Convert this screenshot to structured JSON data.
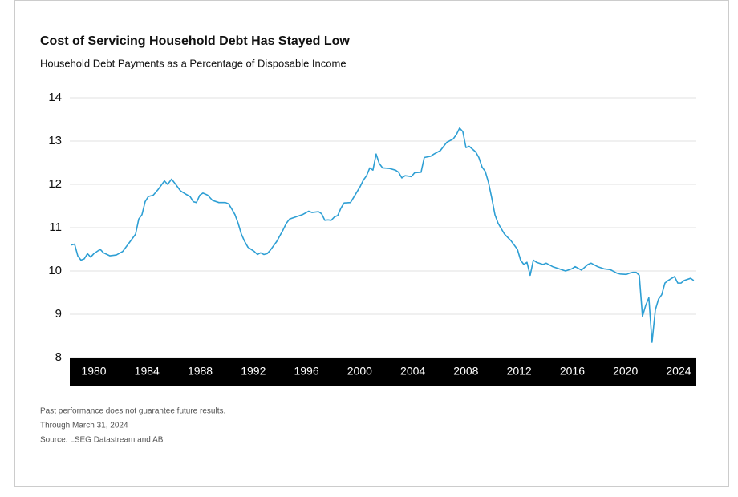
{
  "chart_data": {
    "type": "line",
    "title": "Cost of Servicing Household Debt Has Stayed Low",
    "subtitle": "Household Debt Payments as a Percentage of Disposable Income",
    "notes": [
      "Past performance does not guarantee future results.",
      "Through March 31, 2024",
      "Source: LSEG Datastream and AB"
    ],
    "xlim": [
      1978.19,
      2025.33
    ],
    "xticks": [
      1980,
      1984,
      1988,
      1992,
      1996,
      2000,
      2004,
      2008,
      2012,
      2016,
      2020,
      2024
    ],
    "ylim": [
      8,
      14
    ],
    "yticks": [
      8,
      9,
      10,
      11,
      12,
      13,
      14
    ],
    "grid": true,
    "series": [
      {
        "color": "#2e9fd4",
        "x": [
          1978.31,
          1978.55,
          1978.79,
          1979.03,
          1979.28,
          1979.52,
          1979.76,
          1980,
          1980.48,
          1980.72,
          1981.21,
          1981.69,
          1982.17,
          1982.66,
          1983.14,
          1983.38,
          1983.62,
          1983.86,
          1984.1,
          1984.47,
          1984.83,
          1985.31,
          1985.55,
          1985.85,
          1986.16,
          1986.52,
          1986.88,
          1987.24,
          1987.48,
          1987.72,
          1987.97,
          1988.21,
          1988.57,
          1988.93,
          1989.41,
          1989.9,
          1990.14,
          1990.38,
          1990.62,
          1990.86,
          1991.1,
          1991.35,
          1991.59,
          1992.07,
          1992.31,
          1992.55,
          1992.79,
          1993.04,
          1993.28,
          1993.76,
          1994.24,
          1994.48,
          1994.73,
          1995.21,
          1995.69,
          1996.17,
          1996.42,
          1996.9,
          1997.14,
          1997.38,
          1997.62,
          1997.86,
          1998.11,
          1998.35,
          1998.59,
          1998.83,
          1999.31,
          1999.55,
          2000.04,
          2000.28,
          2000.52,
          2000.76,
          2001.0,
          2001.24,
          2001.48,
          2001.73,
          2002.21,
          2002.69,
          2002.93,
          2003.17,
          2003.42,
          2003.9,
          2004.14,
          2004.62,
          2004.86,
          2005.35,
          2005.59,
          2006.07,
          2006.55,
          2007.04,
          2007.28,
          2007.52,
          2007.76,
          2008.0,
          2008.24,
          2008.73,
          2008.97,
          2009.21,
          2009.45,
          2009.69,
          2009.93,
          2010.18,
          2010.42,
          2010.9,
          2011.38,
          2011.87,
          2012.11,
          2012.35,
          2012.59,
          2012.83,
          2013.07,
          2013.31,
          2013.8,
          2014.04,
          2014.52,
          2015.0,
          2015.49,
          2015.97,
          2016.21,
          2016.69,
          2017.18,
          2017.42,
          2017.9,
          2018.38,
          2018.87,
          2019.35,
          2019.59,
          2020.07,
          2020.31,
          2020.56,
          2020.8,
          2021.04,
          2021.28,
          2021.52,
          2021.76,
          2022.0,
          2022.25,
          2022.49,
          2022.73,
          2022.97,
          2023.21,
          2023.69,
          2023.94,
          2024.18,
          2024.42,
          2024.9,
          2025.14
        ],
        "values": [
          10.6,
          10.62,
          10.35,
          10.25,
          10.28,
          10.4,
          10.32,
          10.4,
          10.5,
          10.42,
          10.35,
          10.37,
          10.45,
          10.65,
          10.85,
          11.2,
          11.3,
          11.6,
          11.72,
          11.75,
          11.88,
          12.08,
          12.0,
          12.12,
          12.0,
          11.85,
          11.78,
          11.72,
          11.6,
          11.58,
          11.75,
          11.8,
          11.75,
          11.63,
          11.58,
          11.58,
          11.55,
          11.43,
          11.3,
          11.1,
          10.85,
          10.68,
          10.55,
          10.45,
          10.38,
          10.42,
          10.38,
          10.4,
          10.48,
          10.68,
          10.95,
          11.1,
          11.2,
          11.25,
          11.3,
          11.38,
          11.35,
          11.37,
          11.32,
          11.17,
          11.18,
          11.17,
          11.25,
          11.28,
          11.45,
          11.57,
          11.58,
          11.7,
          11.95,
          12.1,
          12.2,
          12.38,
          12.33,
          12.7,
          12.48,
          12.38,
          12.37,
          12.33,
          12.28,
          12.15,
          12.2,
          12.18,
          12.27,
          12.28,
          12.62,
          12.65,
          12.7,
          12.78,
          12.97,
          13.05,
          13.15,
          13.3,
          13.22,
          12.85,
          12.88,
          12.75,
          12.62,
          12.4,
          12.3,
          12.05,
          11.7,
          11.3,
          11.1,
          10.85,
          10.7,
          10.5,
          10.25,
          10.15,
          10.2,
          9.9,
          10.25,
          10.2,
          10.15,
          10.18,
          10.1,
          10.05,
          10.0,
          10.05,
          10.1,
          10.02,
          10.15,
          10.18,
          10.1,
          10.05,
          10.03,
          9.95,
          9.93,
          9.92,
          9.95,
          9.97,
          9.97,
          9.9,
          8.95,
          9.2,
          9.38,
          8.35,
          9.1,
          9.35,
          9.45,
          9.72,
          9.78,
          9.87,
          9.72,
          9.72,
          9.78,
          9.83,
          9.78
        ]
      }
    ]
  }
}
